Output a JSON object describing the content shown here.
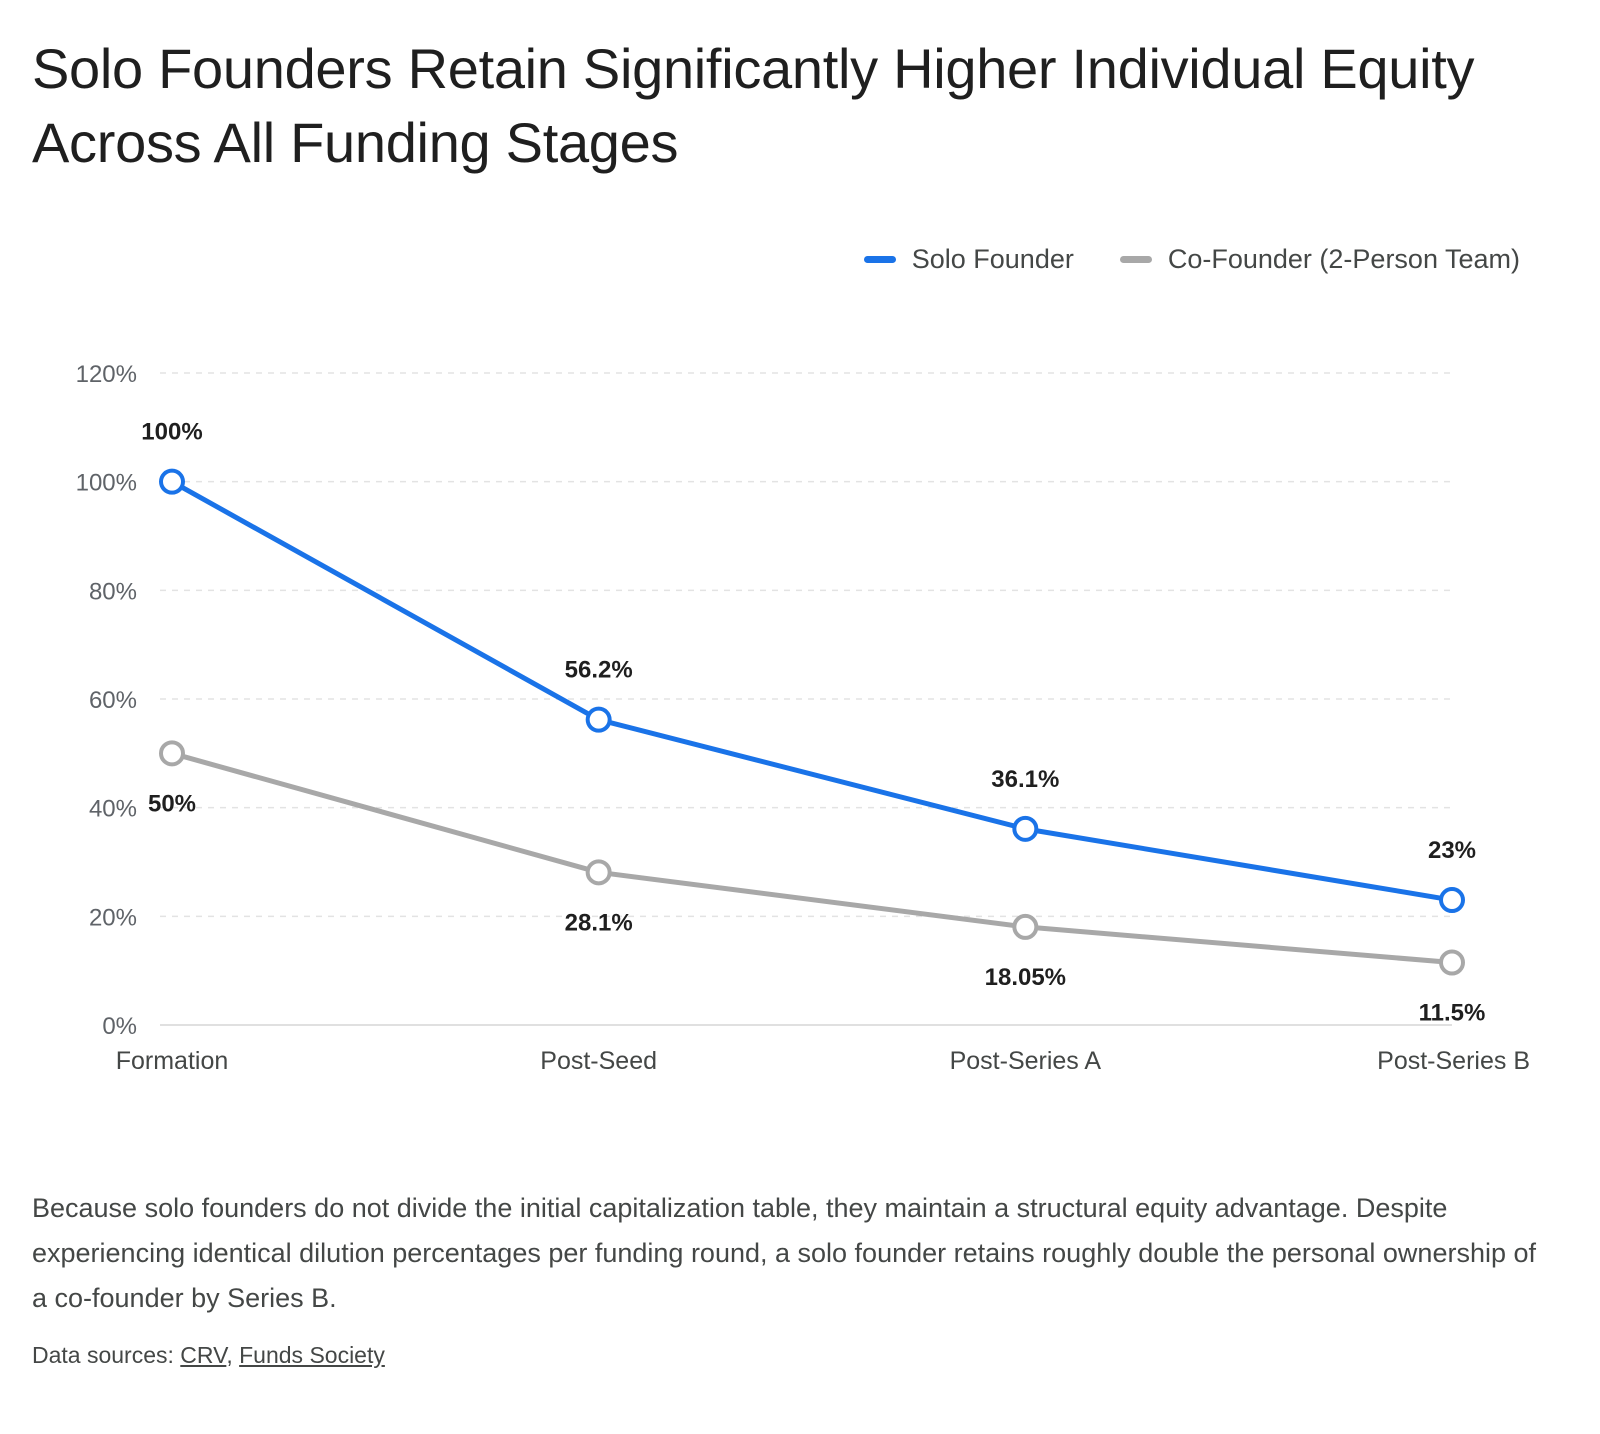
{
  "title": "Solo Founders Retain Significantly Higher Individual Equity Across All Funding Stages",
  "description": "Because solo founders do not divide the initial capitalization table, they maintain a structural equity advantage. Despite experiencing identical dilution percentages per funding round, a solo founder retains roughly double the personal ownership of a co-founder by Series B.",
  "sources": {
    "label": "Data sources:",
    "separator": ",",
    "links": [
      "CRV",
      "Funds Society"
    ]
  },
  "chart_data": {
    "type": "line",
    "categories": [
      "Formation",
      "Post-Seed",
      "Post-Series A",
      "Post-Series B"
    ],
    "series": [
      {
        "name": "Solo Founder",
        "color": "#1a73e8",
        "values": [
          100,
          56.2,
          36.1,
          23
        ],
        "labels": [
          "100%",
          "56.2%",
          "36.1%",
          "23%"
        ],
        "label_position": "above"
      },
      {
        "name": "Co-Founder (2-Person Team)",
        "color": "#a8a8a8",
        "values": [
          50,
          28.1,
          18.05,
          11.5
        ],
        "labels": [
          "50%",
          "28.1%",
          "18.05%",
          "11.5%"
        ],
        "label_position": "below"
      }
    ],
    "ylim": [
      0,
      120
    ],
    "yticks": [
      0,
      20,
      40,
      60,
      80,
      100,
      120
    ],
    "ytick_labels": [
      "0%",
      "20%",
      "40%",
      "60%",
      "80%",
      "100%",
      "120%"
    ],
    "grid": true,
    "legend_position": "top-right"
  }
}
